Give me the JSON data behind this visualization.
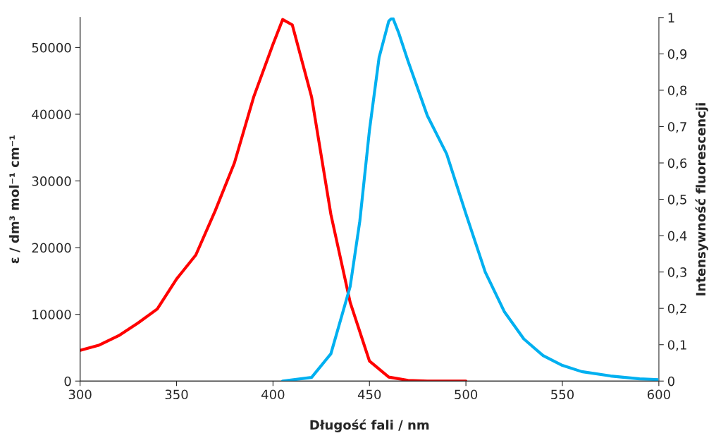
{
  "chart_data": {
    "type": "line",
    "xlabel": "Długość fali / nm",
    "ylabel": "ε / dm³ mol⁻¹ cm⁻¹",
    "y2label": "Intensywność fluorescencji",
    "xlim": [
      300,
      600
    ],
    "xticks": [
      300,
      350,
      400,
      450,
      500,
      550,
      600
    ],
    "ylim": [
      0,
      54500
    ],
    "yticks": [
      0,
      10000,
      20000,
      30000,
      40000,
      50000
    ],
    "y2lim": [
      0,
      1
    ],
    "y2ticks": [
      0,
      {
        "value": 0.1,
        "label": "0,1"
      },
      {
        "value": 0.2,
        "label": "0,2"
      },
      {
        "value": 0.3,
        "label": "0,3"
      },
      {
        "value": 0.4,
        "label": "0,4"
      },
      {
        "value": 0.5,
        "label": "0,5"
      },
      {
        "value": 0.6,
        "label": "0,6"
      },
      {
        "value": 0.7,
        "label": "0,7"
      },
      {
        "value": 0.8,
        "label": "0,8"
      },
      {
        "value": 0.9,
        "label": "0,9"
      },
      1
    ],
    "grid": false,
    "marker": "none",
    "line_style": "solid",
    "series": [
      {
        "color": "#ff0000",
        "x": [
          300,
          310,
          320,
          330,
          340,
          350,
          360,
          370,
          380,
          390,
          400,
          405,
          410,
          420,
          430,
          440,
          450,
          460,
          470,
          480,
          500
        ],
        "values": [
          4600,
          5400,
          6800,
          8700,
          10800,
          15300,
          18900,
          25500,
          32700,
          42600,
          50500,
          54200,
          53400,
          42600,
          25000,
          11800,
          3000,
          600,
          100,
          0,
          0
        ]
      },
      {
        "color": "#00b0f0",
        "axis": "y2",
        "x": [
          405,
          420,
          430,
          440,
          445,
          450,
          455,
          460,
          462,
          465,
          470,
          480,
          490,
          500,
          510,
          520,
          530,
          540,
          550,
          560,
          575,
          590,
          600
        ],
        "values": [
          0,
          0.01,
          0.075,
          0.26,
          0.44,
          0.69,
          0.89,
          0.99,
          1.0,
          0.96,
          0.88,
          0.73,
          0.625,
          0.46,
          0.3,
          0.19,
          0.116,
          0.07,
          0.043,
          0.026,
          0.014,
          0.006,
          0.004
        ]
      }
    ]
  }
}
